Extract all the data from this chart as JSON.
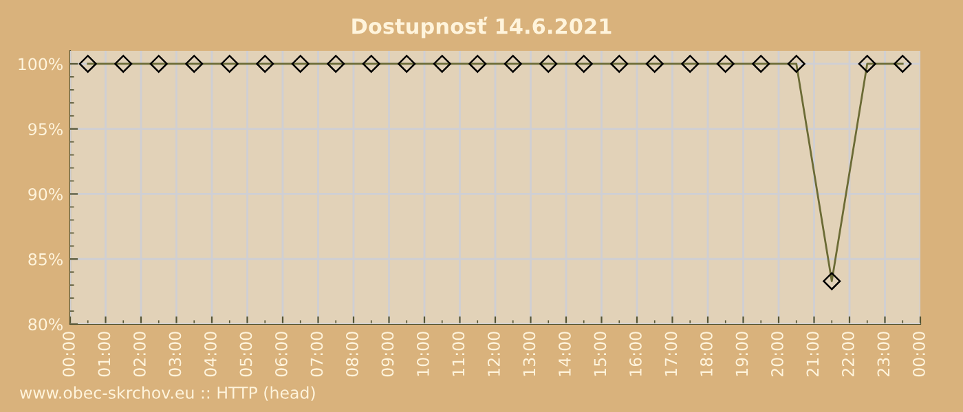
{
  "chart_data": {
    "type": "line",
    "title": "Dostupnosť 14.6.2021",
    "x": [
      0.5,
      1.5,
      2.5,
      3.5,
      4.5,
      5.5,
      6.5,
      7.5,
      8.5,
      9.5,
      10.5,
      11.5,
      12.5,
      13.5,
      14.5,
      15.5,
      16.5,
      17.5,
      18.5,
      19.5,
      20.5,
      21.5,
      22.5,
      23.5
    ],
    "series": [
      {
        "color": "#6b6b35",
        "values": [
          100,
          100,
          100,
          100,
          100,
          100,
          100,
          100,
          100,
          100,
          100,
          100,
          100,
          100,
          100,
          100,
          100,
          100,
          100,
          100,
          100,
          83.3,
          100,
          100
        ]
      }
    ],
    "xlim": [
      0,
      24
    ],
    "xticks": [
      {
        "value": 0,
        "label": "00:00"
      },
      {
        "value": 1,
        "label": "01:00"
      },
      {
        "value": 2,
        "label": "02:00"
      },
      {
        "value": 3,
        "label": "03:00"
      },
      {
        "value": 4,
        "label": "04:00"
      },
      {
        "value": 5,
        "label": "05:00"
      },
      {
        "value": 6,
        "label": "06:00"
      },
      {
        "value": 7,
        "label": "07:00"
      },
      {
        "value": 8,
        "label": "08:00"
      },
      {
        "value": 9,
        "label": "09:00"
      },
      {
        "value": 10,
        "label": "10:00"
      },
      {
        "value": 11,
        "label": "11:00"
      },
      {
        "value": 12,
        "label": "12:00"
      },
      {
        "value": 13,
        "label": "13:00"
      },
      {
        "value": 14,
        "label": "14:00"
      },
      {
        "value": 15,
        "label": "15:00"
      },
      {
        "value": 16,
        "label": "16:00"
      },
      {
        "value": 17,
        "label": "17:00"
      },
      {
        "value": 18,
        "label": "18:00"
      },
      {
        "value": 19,
        "label": "19:00"
      },
      {
        "value": 20,
        "label": "20:00"
      },
      {
        "value": 21,
        "label": "21:00"
      },
      {
        "value": 22,
        "label": "22:00"
      },
      {
        "value": 23,
        "label": "23:00"
      },
      {
        "value": 24,
        "label": "00:00"
      }
    ],
    "ylim": [
      80,
      101
    ],
    "yticks": [
      {
        "value": 80,
        "label": "80%"
      },
      {
        "value": 85,
        "label": "85%"
      },
      {
        "value": 90,
        "label": "90%"
      },
      {
        "value": 95,
        "label": "95%"
      },
      {
        "value": 100,
        "label": "100%"
      }
    ],
    "grid": true,
    "marker": "diamond",
    "line_style": "solid",
    "annotations": [
      "www.obec-skrchov.eu :: HTTP (head)"
    ]
  }
}
